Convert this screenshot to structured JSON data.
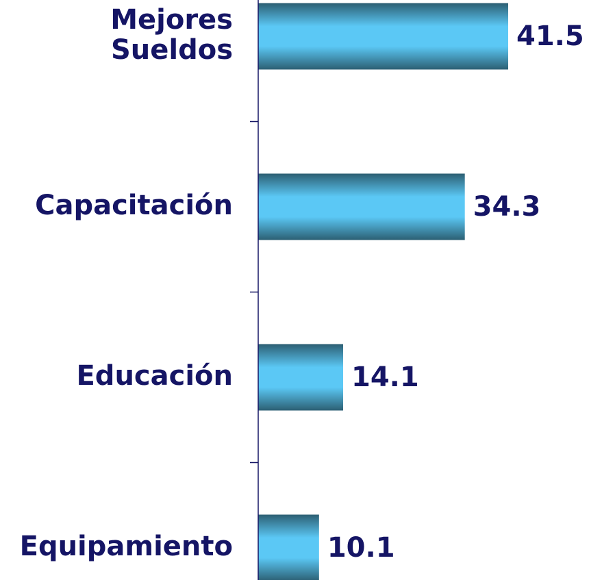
{
  "chart_data": {
    "type": "bar",
    "orientation": "horizontal",
    "categories": [
      "Mejores Sueldos",
      "Capacitación",
      "Educación",
      "Equipamiento"
    ],
    "values": [
      41.5,
      34.3,
      14.1,
      10.1
    ],
    "color": "#5bc8f5"
  }
}
